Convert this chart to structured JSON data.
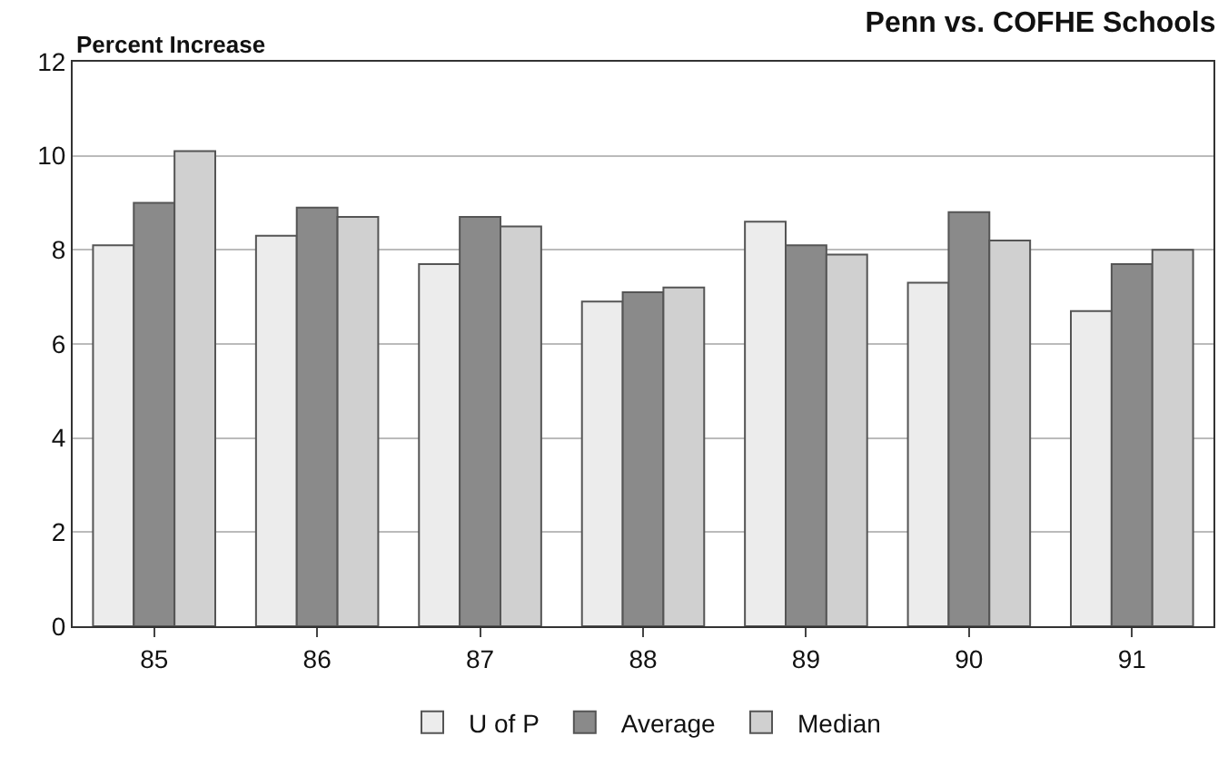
{
  "chart_data": {
    "type": "bar",
    "title": "Penn vs. COFHE Schools",
    "ylabel": "Percent Increase",
    "categories": [
      "85",
      "86",
      "87",
      "88",
      "89",
      "90",
      "91"
    ],
    "series": [
      {
        "name": "U of P",
        "color": "#ececec",
        "values": [
          8.1,
          8.3,
          7.7,
          6.9,
          8.6,
          7.3,
          6.7
        ]
      },
      {
        "name": "Average",
        "color": "#8a8a8a",
        "values": [
          9.0,
          8.9,
          8.7,
          7.1,
          8.1,
          8.8,
          7.7
        ]
      },
      {
        "name": "Median",
        "color": "#d0d0d0",
        "values": [
          10.1,
          8.7,
          8.5,
          7.2,
          7.9,
          8.2,
          8.0
        ]
      }
    ],
    "ylim": [
      0,
      12
    ],
    "yticks": [
      0,
      2,
      4,
      6,
      8,
      10,
      12
    ],
    "grid": "y",
    "legend": "bottom"
  }
}
